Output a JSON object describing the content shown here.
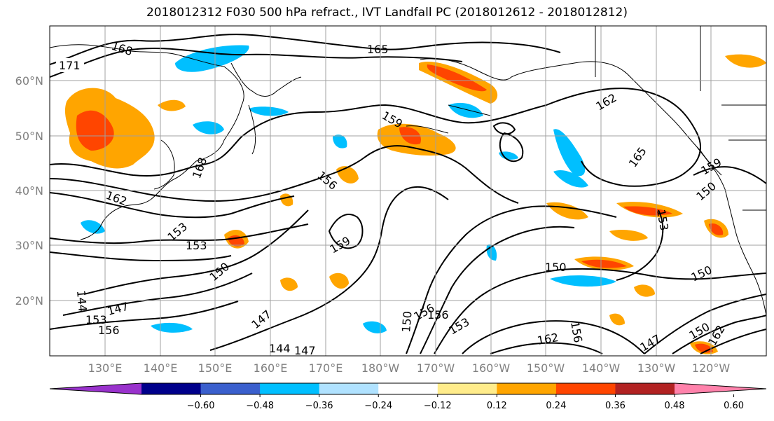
{
  "title": "2018012312 F030 500 hPa refract., IVT Landfall PC (2018012612 - 2018012812)",
  "latitude_labels": [
    "60°N",
    "50°N",
    "40°N",
    "30°N",
    "20°N"
  ],
  "longitude_labels": [
    "130°E",
    "140°E",
    "150°E",
    "160°E",
    "170°E",
    "180°W",
    "170°W",
    "160°W",
    "150°W",
    "140°W",
    "130°W",
    "120°W"
  ],
  "contour_labels": [
    "171",
    "168",
    "165",
    "162",
    "159",
    "156",
    "168",
    "162",
    "153",
    "153",
    "150",
    "159",
    "150",
    "147",
    "147",
    "144",
    "147",
    "144",
    "153",
    "156",
    "153",
    "162",
    "156",
    "150",
    "165",
    "159",
    "153",
    "150",
    "150",
    "156",
    "147",
    "150",
    "162",
    "156"
  ],
  "colorbar": {
    "tick_labels": [
      "−0.60",
      "−0.48",
      "−0.36",
      "−0.24",
      "−0.12",
      "0.12",
      "0.24",
      "0.36",
      "0.48",
      "0.60"
    ],
    "colors": [
      "#9932cc",
      "#00008b",
      "#3a5fcd",
      "#00bfff",
      "#b0e2ff",
      "#ffffff",
      "#ffec8b",
      "#ffa500",
      "#ff4500",
      "#b22222",
      "#ff82ab"
    ]
  },
  "map_colors": {
    "land_outline": "#000000",
    "grid": "#a0a0a0",
    "contour": "#000000"
  }
}
